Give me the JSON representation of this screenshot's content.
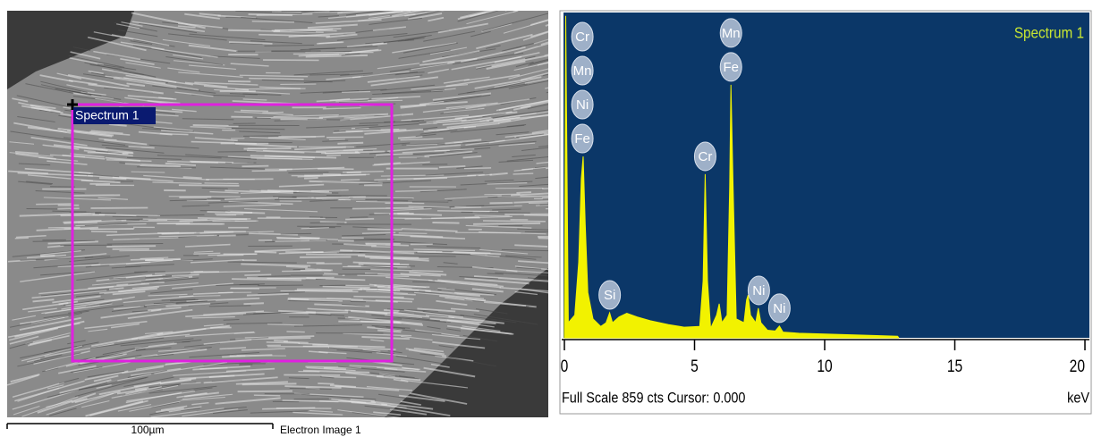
{
  "image": {
    "region_label": "Spectrum 1",
    "scale_label": "100µm",
    "caption": "Electron Image 1"
  },
  "chart_data": {
    "type": "area",
    "series_name": "Spectrum 1",
    "footer": "Full Scale 859 cts Cursor: 0.000",
    "x_label": "keV",
    "color": "#f2f200",
    "background": "#0b3768",
    "x": [
      0,
      0.05,
      0.15,
      0.4,
      0.55,
      0.65,
      0.72,
      0.8,
      0.9,
      1.1,
      1.4,
      1.6,
      1.74,
      1.85,
      2.1,
      2.4,
      2.8,
      3.3,
      4,
      4.6,
      5.2,
      5.33,
      5.41,
      5.5,
      5.62,
      5.85,
      5.95,
      6.05,
      6.25,
      6.35,
      6.4,
      6.48,
      6.6,
      6.9,
      7,
      7.06,
      7.15,
      7.35,
      7.45,
      7.55,
      7.8,
      8.1,
      8.26,
      8.4,
      9,
      10,
      11,
      12,
      12.8,
      12.85
    ],
    "values": [
      0,
      850,
      40,
      60,
      200,
      420,
      479,
      300,
      120,
      50,
      30,
      40,
      66,
      40,
      55,
      65,
      55,
      45,
      35,
      28,
      30,
      150,
      432,
      150,
      25,
      60,
      90,
      40,
      60,
      400,
      668,
      400,
      50,
      40,
      100,
      113,
      60,
      40,
      78,
      40,
      20,
      18,
      31,
      15,
      12,
      10,
      8,
      6,
      4,
      0
    ],
    "xlim": [
      0,
      20
    ],
    "xticks": [
      0,
      5,
      10,
      15,
      20
    ],
    "ylim": [
      0,
      859
    ],
    "peak_labels": [
      {
        "x": 0.69,
        "labels": [
          "Cr",
          "Mn",
          "Ni",
          "Fe"
        ]
      },
      {
        "x": 1.74,
        "labels": [
          "Si"
        ]
      },
      {
        "x": 5.41,
        "labels": [
          "Cr"
        ]
      },
      {
        "x": 6.4,
        "labels": [
          "Mn",
          "Fe"
        ]
      },
      {
        "x": 7.47,
        "labels": [
          "Ni"
        ]
      },
      {
        "x": 8.26,
        "labels": [
          "Ni"
        ]
      }
    ]
  }
}
